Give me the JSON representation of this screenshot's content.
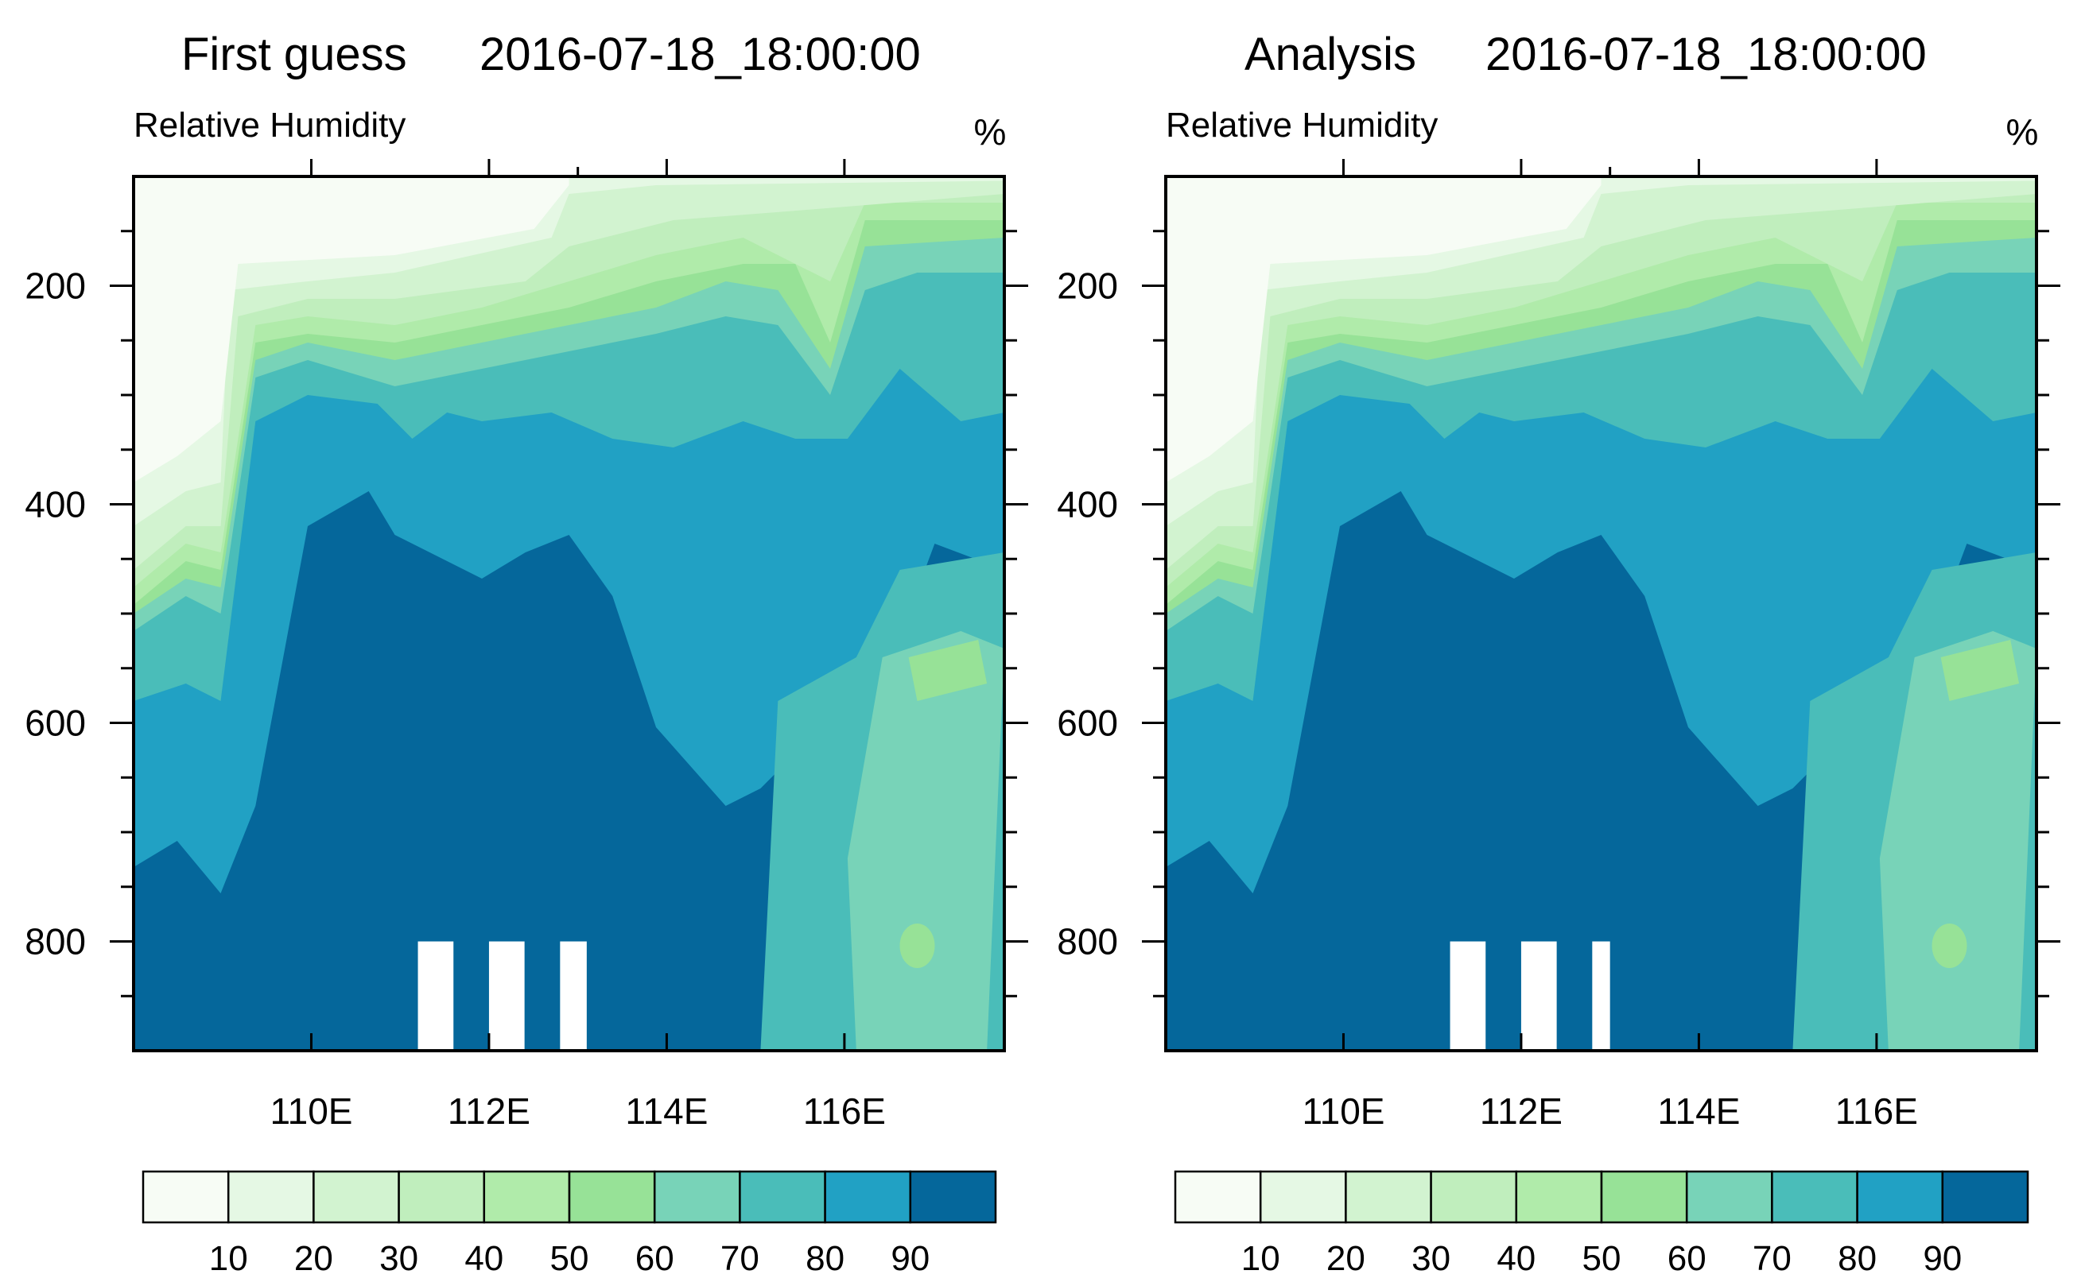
{
  "chart_data": [
    {
      "type": "heatmap",
      "title_left": "First guess",
      "title_right": "2016-07-18_18:00:00",
      "subtitle": "Relative Humidity",
      "units": "%",
      "xlabel": "",
      "ylabel": "",
      "x_ticks": [
        "110E",
        "112E",
        "114E",
        "116E"
      ],
      "x_tick_values": [
        110,
        112,
        114,
        116
      ],
      "x_minor_values": [
        113
      ],
      "xlim": [
        108.0,
        117.8
      ],
      "y_ticks": [
        "200",
        "400",
        "600",
        "800"
      ],
      "y_tick_values": [
        200,
        400,
        600,
        800
      ],
      "ylim": [
        100,
        900
      ],
      "grid": false,
      "colorbar": {
        "labels": [
          "10",
          "20",
          "30",
          "40",
          "50",
          "60",
          "70",
          "80",
          "90"
        ],
        "colors": [
          "#f7fcf5",
          "#e5f8e4",
          "#d2f3d0",
          "#c0eebd",
          "#b0ebaa",
          "#97e297",
          "#78d3b8",
          "#4abdb9",
          "#21a1c4",
          "#05679b"
        ]
      },
      "missing_columns_lon": [
        [
          111.2,
          111.6
        ],
        [
          112.0,
          112.4
        ],
        [
          112.8,
          113.1
        ]
      ],
      "missing_below_level": 800
    },
    {
      "type": "heatmap",
      "title_left": "Analysis",
      "title_right": "2016-07-18_18:00:00",
      "subtitle": "Relative Humidity",
      "units": "%",
      "xlabel": "",
      "ylabel": "",
      "x_ticks": [
        "110E",
        "112E",
        "114E",
        "116E"
      ],
      "x_tick_values": [
        110,
        112,
        114,
        116
      ],
      "x_minor_values": [
        113
      ],
      "xlim": [
        108.0,
        117.8
      ],
      "y_ticks": [
        "200",
        "400",
        "600",
        "800"
      ],
      "y_tick_values": [
        200,
        400,
        600,
        800
      ],
      "ylim": [
        100,
        900
      ],
      "grid": false,
      "colorbar": {
        "labels": [
          "10",
          "20",
          "30",
          "40",
          "50",
          "60",
          "70",
          "80",
          "90"
        ],
        "colors": [
          "#f7fcf5",
          "#e5f8e4",
          "#d2f3d0",
          "#c0eebd",
          "#b0ebaa",
          "#97e297",
          "#78d3b8",
          "#4abdb9",
          "#21a1c4",
          "#05679b"
        ]
      },
      "missing_columns_lon": [
        [
          111.2,
          111.6
        ],
        [
          112.0,
          112.4
        ],
        [
          112.8,
          113.0
        ]
      ],
      "missing_below_level": 800
    }
  ]
}
